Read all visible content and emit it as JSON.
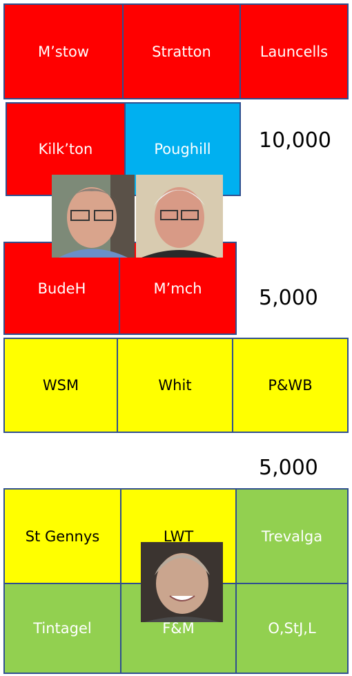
{
  "groups": [
    {
      "cells": [
        "M’stow",
        "Stratton",
        "Launcells"
      ]
    },
    {
      "cells": [
        "Kilk’ton",
        "Poughill"
      ]
    },
    {
      "cells": [
        "BudeH",
        "M’mch"
      ]
    },
    {
      "cells": [
        "WSM",
        "Whit",
        "P&WB"
      ]
    },
    {
      "cells": [
        "St Gennys",
        "LWT",
        "Trevalga"
      ]
    },
    {
      "cells": [
        "Tintagel",
        "F&M",
        "O,StJ,L"
      ]
    }
  ],
  "figures": [
    "10,000",
    "5,000",
    "5,000"
  ]
}
